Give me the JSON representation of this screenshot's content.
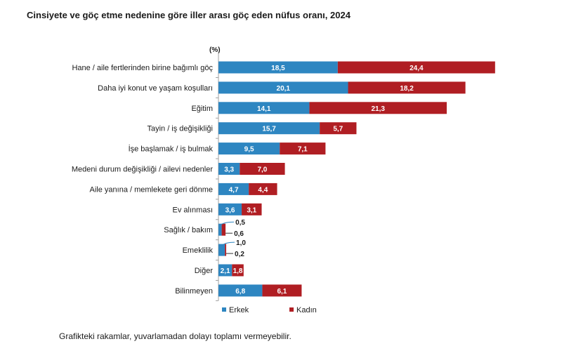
{
  "title": "Cinsiyete ve göç etme nedenine göre iller arası göç eden nüfus oranı, 2024",
  "footnote": "Grafikteki rakamlar, yuvarlamadan dolayı toplamı vermeyebilir.",
  "colors": {
    "erkek": "#2E86C1",
    "kadin": "#B01E23",
    "axis": "#a0a0a0"
  },
  "chart_data": {
    "type": "bar",
    "orientation": "horizontal",
    "stacked": true,
    "unit_label": "(%)",
    "categories": [
      "Hane / aile fertlerinden birine bağımlı göç",
      "Daha iyi konut ve yaşam koşulları",
      "Eğitim",
      "Tayin / iş değişikliği",
      "İşe başlamak / iş bulmak",
      "Medeni durum değişikliği / ailevi nedenler",
      "Aile yanına / memlekete geri dönme",
      "Ev alınması",
      "Sağlık / bakım",
      "Emeklilik",
      "Diğer",
      "Bilinmeyen"
    ],
    "series": [
      {
        "name": "Erkek",
        "values": [
          18.5,
          20.1,
          14.1,
          15.7,
          9.5,
          3.3,
          4.7,
          3.6,
          0.5,
          1.0,
          2.1,
          6.8
        ],
        "labels": [
          "18,5",
          "20,1",
          "14,1",
          "15,7",
          "9,5",
          "3,3",
          "4,7",
          "3,6",
          "0,5",
          "1,0",
          "2,1",
          "6,8"
        ]
      },
      {
        "name": "Kadın",
        "values": [
          24.4,
          18.2,
          21.3,
          5.7,
          7.1,
          7.0,
          4.4,
          3.1,
          0.6,
          0.2,
          1.8,
          6.1
        ],
        "labels": [
          "24,4",
          "18,2",
          "21,3",
          "5,7",
          "7,1",
          "7,0",
          "4,4",
          "3,1",
          "0,6",
          "0,2",
          "1,8",
          "6,1"
        ]
      }
    ],
    "xlim": [
      0,
      45
    ],
    "grid": false,
    "legend_position": "bottom"
  }
}
